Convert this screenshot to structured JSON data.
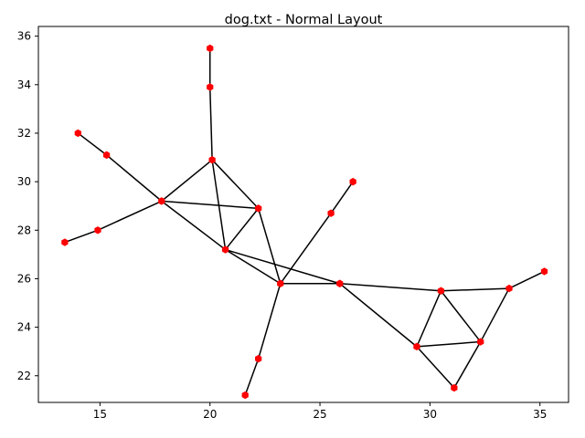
{
  "chart_data": {
    "type": "network",
    "title": "dog.txt - Normal Layout",
    "xlabel": "",
    "ylabel": "",
    "xlim": [
      12.2,
      36.3
    ],
    "ylim": [
      20.9,
      36.4
    ],
    "x_ticks": [
      15,
      20,
      25,
      30,
      35
    ],
    "y_ticks": [
      22,
      24,
      26,
      28,
      30,
      32,
      34,
      36
    ],
    "grid": false,
    "node_color": "#ff0000",
    "edge_color": "#000000",
    "nodes": [
      {
        "id": "n1",
        "x": 20.0,
        "y": 35.5
      },
      {
        "id": "n2",
        "x": 20.0,
        "y": 33.9
      },
      {
        "id": "n3",
        "x": 20.1,
        "y": 30.9
      },
      {
        "id": "n4",
        "x": 14.0,
        "y": 32.0
      },
      {
        "id": "n5",
        "x": 15.3,
        "y": 31.1
      },
      {
        "id": "n6",
        "x": 17.8,
        "y": 29.2
      },
      {
        "id": "n7",
        "x": 14.9,
        "y": 28.0
      },
      {
        "id": "n8",
        "x": 13.4,
        "y": 27.5
      },
      {
        "id": "n9",
        "x": 22.2,
        "y": 28.9
      },
      {
        "id": "n10",
        "x": 20.7,
        "y": 27.2
      },
      {
        "id": "n11",
        "x": 23.2,
        "y": 25.8
      },
      {
        "id": "n12",
        "x": 25.9,
        "y": 25.8
      },
      {
        "id": "n13",
        "x": 25.5,
        "y": 28.7
      },
      {
        "id": "n14",
        "x": 26.5,
        "y": 30.0
      },
      {
        "id": "n15",
        "x": 22.2,
        "y": 22.7
      },
      {
        "id": "n16",
        "x": 21.6,
        "y": 21.2
      },
      {
        "id": "n17",
        "x": 30.5,
        "y": 25.5
      },
      {
        "id": "n18",
        "x": 29.4,
        "y": 23.2
      },
      {
        "id": "n19",
        "x": 32.3,
        "y": 23.4
      },
      {
        "id": "n20",
        "x": 31.1,
        "y": 21.5
      },
      {
        "id": "n21",
        "x": 33.6,
        "y": 25.6
      },
      {
        "id": "n22",
        "x": 35.2,
        "y": 26.3
      }
    ],
    "edges": [
      [
        "n1",
        "n2"
      ],
      [
        "n2",
        "n3"
      ],
      [
        "n3",
        "n6"
      ],
      [
        "n3",
        "n9"
      ],
      [
        "n3",
        "n10"
      ],
      [
        "n4",
        "n5"
      ],
      [
        "n5",
        "n6"
      ],
      [
        "n6",
        "n7"
      ],
      [
        "n7",
        "n8"
      ],
      [
        "n6",
        "n9"
      ],
      [
        "n6",
        "n10"
      ],
      [
        "n9",
        "n10"
      ],
      [
        "n9",
        "n11"
      ],
      [
        "n10",
        "n11"
      ],
      [
        "n10",
        "n12"
      ],
      [
        "n11",
        "n12"
      ],
      [
        "n11",
        "n13"
      ],
      [
        "n13",
        "n14"
      ],
      [
        "n11",
        "n15"
      ],
      [
        "n15",
        "n16"
      ],
      [
        "n12",
        "n17"
      ],
      [
        "n12",
        "n18"
      ],
      [
        "n17",
        "n18"
      ],
      [
        "n17",
        "n19"
      ],
      [
        "n17",
        "n21"
      ],
      [
        "n18",
        "n19"
      ],
      [
        "n18",
        "n20"
      ],
      [
        "n20",
        "n19"
      ],
      [
        "n19",
        "n21"
      ],
      [
        "n21",
        "n22"
      ]
    ]
  }
}
